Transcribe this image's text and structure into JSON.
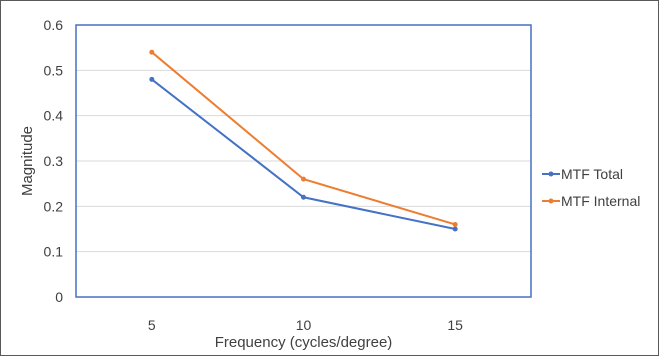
{
  "chart_data": {
    "type": "line",
    "title": "",
    "xlabel": "Frequency (cycles/degree)",
    "ylabel": "Magnitude",
    "categories": [
      "5",
      "10",
      "15"
    ],
    "ylim": [
      0,
      0.6
    ],
    "yticks": [
      "0",
      "0.1",
      "0.2",
      "0.3",
      "0.4",
      "0.5",
      "0.6"
    ],
    "grid": true,
    "legend_position": "right",
    "series": [
      {
        "name": "MTF Total",
        "values": [
          0.48,
          0.22,
          0.15
        ],
        "color": "#4472C4"
      },
      {
        "name": "MTF Internal",
        "values": [
          0.54,
          0.26,
          0.16
        ],
        "color": "#ED7D31"
      }
    ],
    "plot_border_color": "#4472C4",
    "gridline_color": "#D9D9D9"
  }
}
